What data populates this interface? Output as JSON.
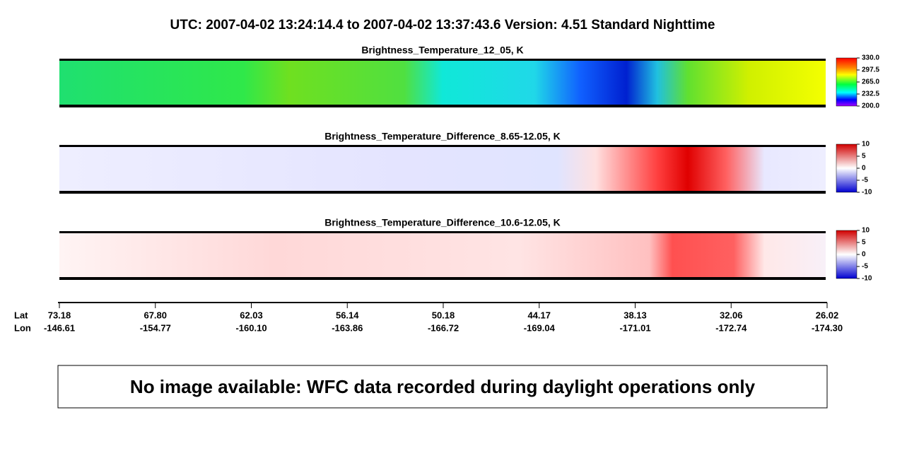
{
  "title": "UTC:  2007-04-02   13:24:14.4  to  2007-04-02   13:37:43.6    Version: 4.51  Standard Nighttime",
  "panels": [
    {
      "title": "Brightness_Temperature_12_05, K",
      "colorbar_ticks": [
        "330.0",
        "297.5",
        "265.0",
        "232.5",
        "200.0"
      ]
    },
    {
      "title": "Brightness_Temperature_Difference_8.65-12.05, K",
      "colorbar_ticks": [
        "10",
        "5",
        "0",
        "-5",
        "-10"
      ]
    },
    {
      "title": "Brightness_Temperature_Difference_10.6-12.05, K",
      "colorbar_ticks": [
        "10",
        "5",
        "0",
        "-5",
        "-10"
      ]
    }
  ],
  "axis": {
    "lat_label": "Lat",
    "lon_label": "Lon",
    "lat": [
      "73.18",
      "67.80",
      "62.03",
      "56.14",
      "50.18",
      "44.17",
      "38.13",
      "32.06",
      "26.02"
    ],
    "lon": [
      "-146.61",
      "-154.77",
      "-160.10",
      "-163.86",
      "-166.72",
      "-169.04",
      "-171.01",
      "-172.74",
      "-174.30"
    ]
  },
  "notice": "No image available: WFC data recorded during daylight operations only"
}
